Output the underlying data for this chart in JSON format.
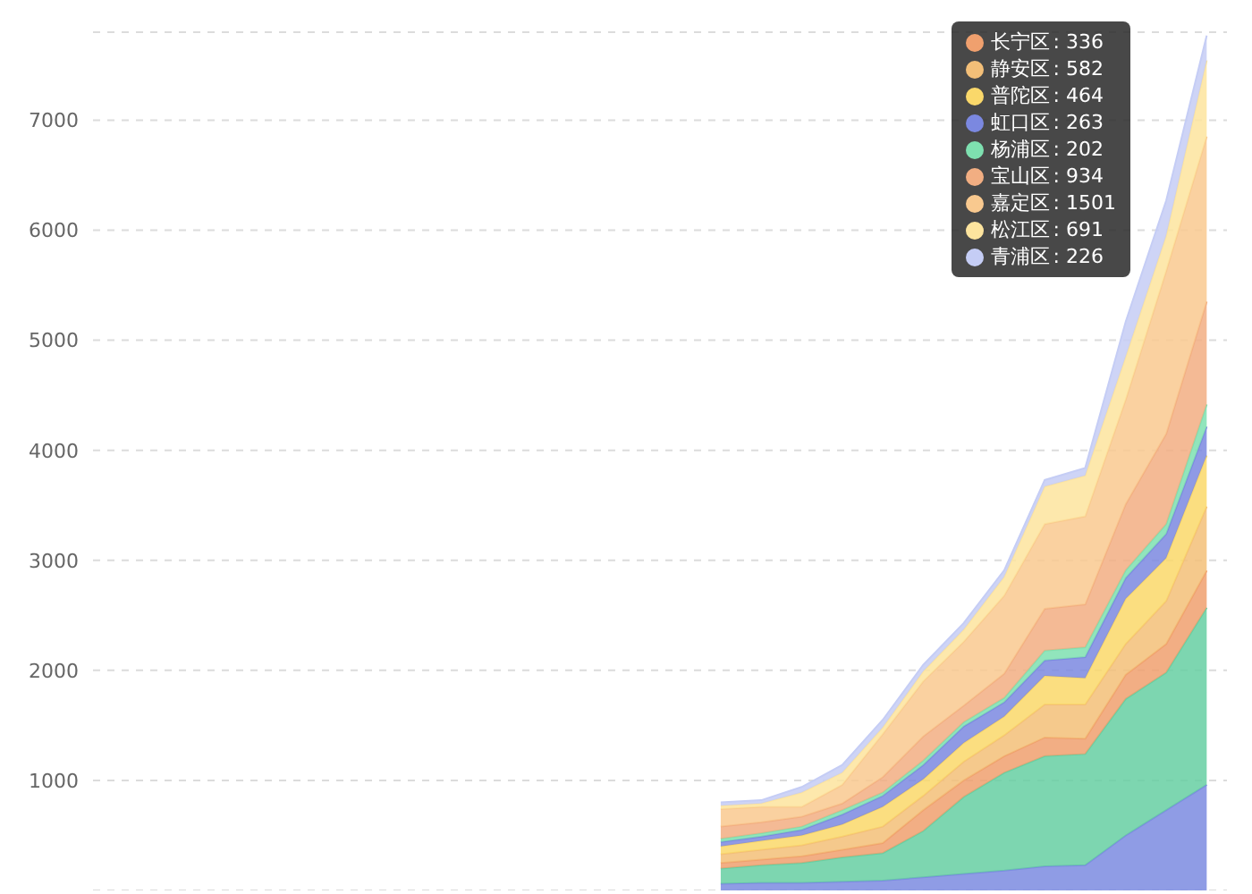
{
  "chart_data": {
    "type": "area",
    "stacked": true,
    "categories": [
      null,
      null,
      null,
      null,
      null,
      null,
      null,
      null,
      null,
      null,
      null,
      null,
      null,
      null,
      null,
      null,
      null,
      null,
      null,
      null,
      null,
      null,
      null,
      null,
      null,
      null,
      null,
      null
    ],
    "ylim": [
      0,
      7800
    ],
    "annotations": [
      ": 336",
      ": 582",
      ": 464",
      ": 263",
      ": 202",
      ": 934",
      ": 1501",
      ": 691",
      ": 226"
    ],
    "yticks": [
      1000,
      2000,
      3000,
      4000,
      5000,
      6000,
      7000
    ],
    "grid": "y",
    "tick_labels": "y",
    "legend": "top right",
    "series": [
      {
        "color": "#7b8be0",
        "values": [
          null,
          null,
          null,
          null,
          null,
          null,
          null,
          null,
          null,
          null,
          null,
          null,
          null,
          null,
          null,
          60,
          70,
          70,
          80,
          90,
          120,
          150,
          180,
          220,
          230,
          500,
          730,
          960
        ]
      },
      {
        "color": "#66cfa2",
        "values": [
          null,
          null,
          null,
          null,
          null,
          null,
          null,
          null,
          null,
          null,
          null,
          null,
          null,
          null,
          null,
          140,
          160,
          180,
          220,
          250,
          420,
          700,
          890,
          1000,
          1010,
          1240,
          1250,
          1610
        ]
      },
      {
        "name": "长宁区",
        "color": "#f0a06e",
        "values": [
          null,
          null,
          null,
          null,
          null,
          null,
          null,
          null,
          null,
          null,
          null,
          null,
          null,
          null,
          null,
          50,
          50,
          60,
          70,
          90,
          190,
          150,
          150,
          170,
          140,
          220,
          260,
          336
        ]
      },
      {
        "name": "静安区",
        "color": "#f3bf78",
        "values": [
          null,
          null,
          null,
          null,
          null,
          null,
          null,
          null,
          null,
          null,
          null,
          null,
          null,
          null,
          null,
          80,
          90,
          100,
          120,
          150,
          130,
          170,
          190,
          300,
          310,
          280,
          390,
          582
        ]
      },
      {
        "name": "普陀区",
        "color": "#fad86a",
        "values": [
          null,
          null,
          null,
          null,
          null,
          null,
          null,
          null,
          null,
          null,
          null,
          null,
          null,
          null,
          null,
          70,
          80,
          90,
          110,
          180,
          150,
          170,
          170,
          260,
          240,
          410,
          390,
          464
        ]
      },
      {
        "name": "虹口区",
        "color": "#7b88e0",
        "values": [
          null,
          null,
          null,
          null,
          null,
          null,
          null,
          null,
          null,
          null,
          null,
          null,
          null,
          null,
          null,
          40,
          40,
          50,
          90,
          100,
          130,
          150,
          130,
          140,
          190,
          190,
          220,
          263
        ]
      },
      {
        "name": "杨浦区",
        "color": "#7ee0b0",
        "values": [
          null,
          null,
          null,
          null,
          null,
          null,
          null,
          null,
          null,
          null,
          null,
          null,
          null,
          null,
          null,
          30,
          30,
          30,
          40,
          30,
          40,
          40,
          40,
          90,
          90,
          70,
          90,
          202
        ]
      },
      {
        "name": "宝山区",
        "color": "#f2ae82",
        "values": [
          null,
          null,
          null,
          null,
          null,
          null,
          null,
          null,
          null,
          null,
          null,
          null,
          null,
          null,
          null,
          110,
          100,
          90,
          60,
          140,
          220,
          150,
          220,
          380,
          390,
          600,
          820,
          934
        ]
      },
      {
        "name": "嘉定区",
        "color": "#f9c98f",
        "values": [
          null,
          null,
          null,
          null,
          null,
          null,
          null,
          null,
          null,
          null,
          null,
          null,
          null,
          null,
          null,
          160,
          140,
          90,
          170,
          390,
          500,
          580,
          710,
          770,
          800,
          950,
          1480,
          1501
        ]
      },
      {
        "name": "松江区",
        "color": "#fde49e",
        "values": [
          null,
          null,
          null,
          null,
          null,
          null,
          null,
          null,
          null,
          null,
          null,
          null,
          null,
          null,
          null,
          30,
          30,
          130,
          110,
          60,
          90,
          110,
          170,
          340,
          370,
          390,
          320,
          691
        ]
      },
      {
        "name": "青浦区",
        "color": "#c5cdf5",
        "values": [
          null,
          null,
          null,
          null,
          null,
          null,
          null,
          null,
          null,
          null,
          null,
          null,
          null,
          null,
          null,
          30,
          30,
          50,
          70,
          70,
          60,
          60,
          60,
          60,
          70,
          320,
          320,
          226
        ]
      }
    ]
  }
}
